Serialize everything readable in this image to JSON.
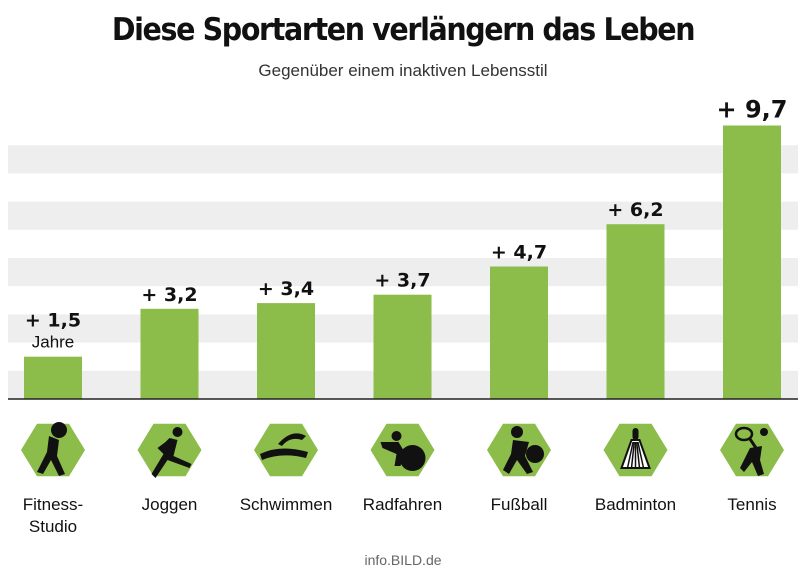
{
  "header": {
    "title": "Diese Sportarten verlängern das Leben",
    "subtitle": "Gegenüber einem inaktiven Lebensstil"
  },
  "source": "info.BILD.de",
  "colors": {
    "bar": "#8cbc4a",
    "stripe": "#eeeeee",
    "icon_bg": "#8cbc4a",
    "icon_fg": "#111111",
    "axis": "#222222"
  },
  "chart_data": {
    "type": "bar",
    "categories": [
      "Fitness-\nStudio",
      "Joggen",
      "Schwimmen",
      "Radfahren",
      "Fußball",
      "Badminton",
      "Tennis"
    ],
    "icons": [
      "fitness-icon",
      "jogging-icon",
      "swimming-icon",
      "cycling-icon",
      "football-icon",
      "badminton-icon",
      "tennis-icon"
    ],
    "values": [
      1.5,
      3.2,
      3.4,
      3.7,
      4.7,
      6.2,
      9.7
    ],
    "value_labels": [
      "+ 1,5",
      "+ 3,2",
      "+ 3,4",
      "+ 3,7",
      "+ 4,7",
      "+ 6,2",
      "+ 9,7"
    ],
    "first_label_unit": "Jahre",
    "title": "Diese Sportarten verlängern das Leben",
    "xlabel": "",
    "ylabel": "",
    "ylim": [
      0,
      10
    ],
    "grid": true,
    "legend": "none"
  }
}
